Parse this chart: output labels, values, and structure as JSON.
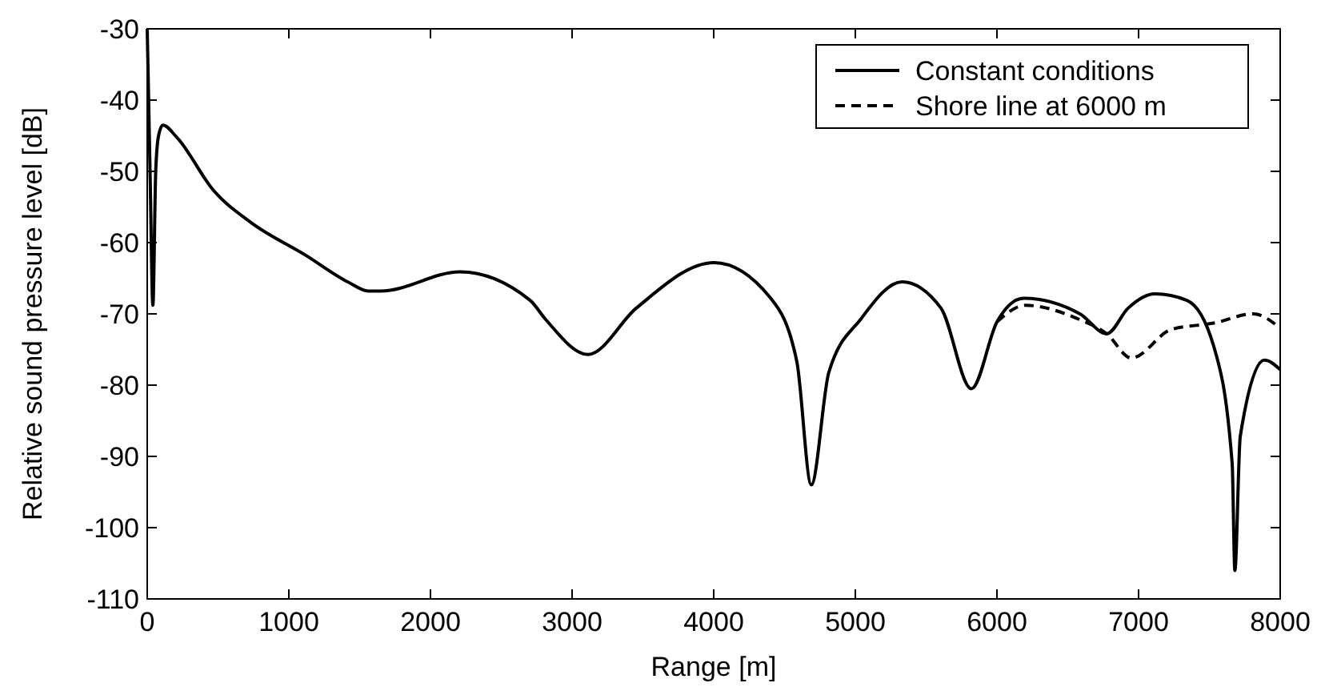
{
  "chart_data": {
    "type": "line",
    "xlabel": "Range [m]",
    "ylabel": "Relative sound pressure level [dB]",
    "xlim": [
      0,
      8000
    ],
    "ylim": [
      -110,
      -30
    ],
    "xticks": [
      0,
      1000,
      2000,
      3000,
      4000,
      5000,
      6000,
      7000,
      8000
    ],
    "yticks": [
      -110,
      -100,
      -90,
      -80,
      -70,
      -60,
      -50,
      -40,
      -30
    ],
    "grid": false,
    "legend": "top right",
    "series": [
      {
        "name": "Constant conditions",
        "color": "#000000",
        "line_style": "solid",
        "x": [
          0,
          20,
          40,
          60,
          80,
          110,
          208,
          469,
          734,
          1113,
          1415,
          1562,
          1650,
          2208,
          2704,
          2810,
          3113,
          3453,
          4002,
          4398,
          4587,
          4689,
          4813,
          5040,
          5330,
          5605,
          5820,
          6001,
          6190,
          6586,
          6775,
          6926,
          7114,
          7341,
          7530,
          7661,
          7680,
          7718,
          7888,
          8000
        ],
        "values": [
          -30,
          -50,
          -68.8,
          -50,
          -45,
          -43.5,
          -45.2,
          -52.7,
          -57.2,
          -61.7,
          -65.5,
          -66.8,
          -66.8,
          -64.1,
          -68.1,
          -70.7,
          -75.7,
          -69.2,
          -62.8,
          -67.7,
          -76.7,
          -94,
          -78.2,
          -70.7,
          -65.5,
          -69.2,
          -80.5,
          -71.1,
          -67.8,
          -70,
          -72.8,
          -69.2,
          -67.2,
          -68.1,
          -74.5,
          -91,
          -106,
          -87.2,
          -76.5,
          -77.8
        ]
      },
      {
        "name": "Shore line at 6000 m",
        "color": "#000000",
        "line_style": "dashed",
        "x": [
          6001,
          6200,
          6560,
          6775,
          6950,
          7230,
          7530,
          7810,
          8000
        ],
        "values": [
          -71.1,
          -68.8,
          -70.6,
          -72.8,
          -76.2,
          -72.2,
          -71.3,
          -70,
          -72
        ]
      }
    ]
  }
}
